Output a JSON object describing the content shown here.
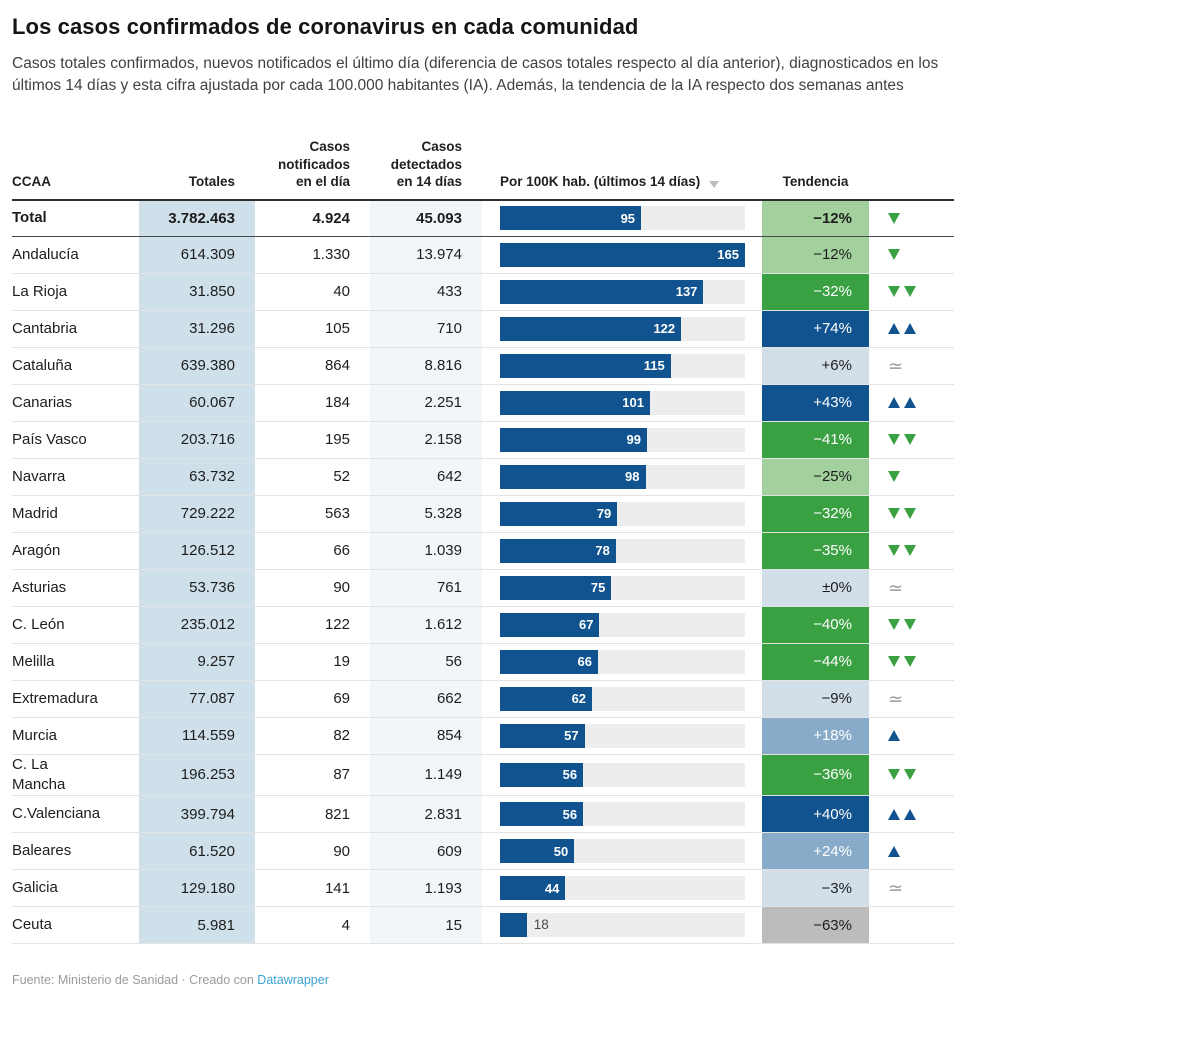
{
  "header": {
    "title": "Los casos confirmados de coronavirus en cada comunidad",
    "description": "Casos totales confirmados, nuevos notificados el último día (diferencia de casos totales respecto al día anterior), diagnosticados en los últimos 14 días y esta cifra ajustada por cada 100.000 habitantes (IA). Además, la tendencia de la IA respecto dos semanas antes"
  },
  "columns": {
    "ccaa": "CCAA",
    "totales": "Totales",
    "notificados": "Casos\nnotificados\nen el día",
    "detectados": "Casos\ndetectados\nen 14 días",
    "por100k": "Por 100K hab. (últimos 14 días)",
    "tendencia": "Tendencia"
  },
  "colors": {
    "bar_blue": "#10538e",
    "bar_track": "#ededed",
    "trend_green_strong": "#3aa143",
    "trend_green_light": "#a3d19d",
    "trend_blue_dark": "#10538e",
    "trend_blue_mid": "#87abc9",
    "trend_blue_pale": "#d2dfe9",
    "trend_gray": "#bcbcbc",
    "totales_column_bg": "#cfe0ea",
    "detectados_column_bg": "#f2f6f9",
    "link_blue": "#3ba3d5"
  },
  "chart_data": {
    "type": "table",
    "title": "Los casos confirmados de coronavirus en cada comunidad",
    "bar_column": "Por 100K hab. (últimos 14 días)",
    "bar_axis_max": 165,
    "columns": [
      "CCAA",
      "Totales",
      "Casos notificados en el día",
      "Casos detectados en 14 días",
      "Por 100K hab. (últimos 14 días)",
      "Tendencia"
    ],
    "rows": [
      {
        "ccaa": "Total",
        "totales": "3.782.463",
        "nuevos": "4.924",
        "c14": "45.093",
        "ia": 95,
        "tendencia": "−12%",
        "style": "lightgreen",
        "trend": "down-single",
        "bold": true
      },
      {
        "ccaa": "Andalucía",
        "totales": "614.309",
        "nuevos": "1.330",
        "c14": "13.974",
        "ia": 165,
        "tendencia": "−12%",
        "style": "lightgreen",
        "trend": "down-single"
      },
      {
        "ccaa": "La Rioja",
        "totales": "31.850",
        "nuevos": "40",
        "c14": "433",
        "ia": 137,
        "tendencia": "−32%",
        "style": "green",
        "trend": "down-double"
      },
      {
        "ccaa": "Cantabria",
        "totales": "31.296",
        "nuevos": "105",
        "c14": "710",
        "ia": 122,
        "tendencia": "+74%",
        "style": "darkblue",
        "trend": "up-double"
      },
      {
        "ccaa": "Cataluña",
        "totales": "639.380",
        "nuevos": "864",
        "c14": "8.816",
        "ia": 115,
        "tendencia": "+6%",
        "style": "paleblue",
        "trend": "approx"
      },
      {
        "ccaa": "Canarias",
        "totales": "60.067",
        "nuevos": "184",
        "c14": "2.251",
        "ia": 101,
        "tendencia": "+43%",
        "style": "darkblue",
        "trend": "up-double"
      },
      {
        "ccaa": "País Vasco",
        "totales": "203.716",
        "nuevos": "195",
        "c14": "2.158",
        "ia": 99,
        "tendencia": "−41%",
        "style": "green",
        "trend": "down-double"
      },
      {
        "ccaa": "Navarra",
        "totales": "63.732",
        "nuevos": "52",
        "c14": "642",
        "ia": 98,
        "tendencia": "−25%",
        "style": "lightgreen",
        "trend": "down-single"
      },
      {
        "ccaa": "Madrid",
        "totales": "729.222",
        "nuevos": "563",
        "c14": "5.328",
        "ia": 79,
        "tendencia": "−32%",
        "style": "green",
        "trend": "down-double"
      },
      {
        "ccaa": "Aragón",
        "totales": "126.512",
        "nuevos": "66",
        "c14": "1.039",
        "ia": 78,
        "tendencia": "−35%",
        "style": "green",
        "trend": "down-double"
      },
      {
        "ccaa": "Asturias",
        "totales": "53.736",
        "nuevos": "90",
        "c14": "761",
        "ia": 75,
        "tendencia": "±0%",
        "style": "paleblue",
        "trend": "approx"
      },
      {
        "ccaa": "C. León",
        "totales": "235.012",
        "nuevos": "122",
        "c14": "1.612",
        "ia": 67,
        "tendencia": "−40%",
        "style": "green",
        "trend": "down-double"
      },
      {
        "ccaa": "Melilla",
        "totales": "9.257",
        "nuevos": "19",
        "c14": "56",
        "ia": 66,
        "tendencia": "−44%",
        "style": "green",
        "trend": "down-double"
      },
      {
        "ccaa": "Extremadura",
        "totales": "77.087",
        "nuevos": "69",
        "c14": "662",
        "ia": 62,
        "tendencia": "−9%",
        "style": "paleblue",
        "trend": "approx"
      },
      {
        "ccaa": "Murcia",
        "totales": "114.559",
        "nuevos": "82",
        "c14": "854",
        "ia": 57,
        "tendencia": "+18%",
        "style": "midblue",
        "trend": "up-single"
      },
      {
        "ccaa": "C. La\nMancha",
        "totales": "196.253",
        "nuevos": "87",
        "c14": "1.149",
        "ia": 56,
        "tendencia": "−36%",
        "style": "green",
        "trend": "down-double"
      },
      {
        "ccaa": "C.Valenciana",
        "totales": "399.794",
        "nuevos": "821",
        "c14": "2.831",
        "ia": 56,
        "tendencia": "+40%",
        "style": "darkblue",
        "trend": "up-double"
      },
      {
        "ccaa": "Baleares",
        "totales": "61.520",
        "nuevos": "90",
        "c14": "609",
        "ia": 50,
        "tendencia": "+24%",
        "style": "midblue",
        "trend": "up-single"
      },
      {
        "ccaa": "Galicia",
        "totales": "129.180",
        "nuevos": "141",
        "c14": "1.193",
        "ia": 44,
        "tendencia": "−3%",
        "style": "paleblue",
        "trend": "approx"
      },
      {
        "ccaa": "Ceuta",
        "totales": "5.981",
        "nuevos": "4",
        "c14": "15",
        "ia": 18,
        "tendencia": "−63%",
        "style": "gray",
        "trend": "none"
      }
    ]
  },
  "footer": {
    "prefix": "Fuente: Ministerio de Sanidad · Creado con",
    "link_label": "Datawrapper"
  }
}
